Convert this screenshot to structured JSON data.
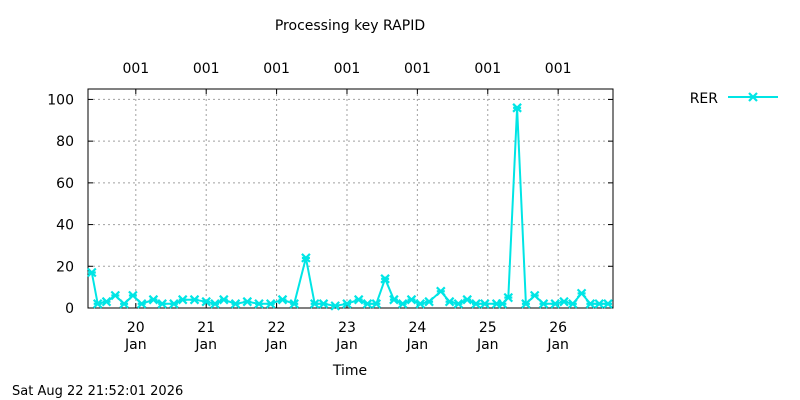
{
  "chart_data": {
    "type": "line",
    "title": "Processing key RAPID",
    "xlabel": "Time",
    "ylabel": "",
    "ylim": [
      0,
      105
    ],
    "xlim": [
      "2026-01-19 07:42",
      "2026-01-26 18:42"
    ],
    "y_ticks": [
      "0",
      "20",
      "40",
      "60",
      "80",
      "100"
    ],
    "x_ticks": [
      {
        "value": "2026-01-20",
        "day": "20",
        "month": "Jan"
      },
      {
        "value": "2026-01-21",
        "day": "21",
        "month": "Jan"
      },
      {
        "value": "2026-01-22",
        "day": "22",
        "month": "Jan"
      },
      {
        "value": "2026-01-23",
        "day": "23",
        "month": "Jan"
      },
      {
        "value": "2026-01-24",
        "day": "24",
        "month": "Jan"
      },
      {
        "value": "2026-01-25",
        "day": "25",
        "month": "Jan"
      },
      {
        "value": "2026-01-26",
        "day": "26",
        "month": "Jan"
      }
    ],
    "top_labels": [
      "001",
      "001",
      "001",
      "001",
      "001",
      "001",
      "001"
    ],
    "grid": true,
    "legend": "right",
    "series": [
      {
        "name": "RER",
        "color": "#00e5e5",
        "marker": "x-star",
        "x": [
          "2026-01-19 09:00",
          "2026-01-19 11:00",
          "2026-01-19 14:00",
          "2026-01-19 17:00",
          "2026-01-19 20:00",
          "2026-01-19 23:00",
          "2026-01-20 02:00",
          "2026-01-20 06:00",
          "2026-01-20 09:00",
          "2026-01-20 13:00",
          "2026-01-20 16:00",
          "2026-01-20 20:00",
          "2026-01-21 00:00",
          "2026-01-21 03:00",
          "2026-01-21 06:00",
          "2026-01-21 10:00",
          "2026-01-21 14:00",
          "2026-01-21 18:00",
          "2026-01-21 22:00",
          "2026-01-22 02:00",
          "2026-01-22 06:00",
          "2026-01-22 10:00",
          "2026-01-22 13:00",
          "2026-01-22 16:00",
          "2026-01-22 20:00",
          "2026-01-23 00:00",
          "2026-01-23 04:00",
          "2026-01-23 07:00",
          "2026-01-23 10:00",
          "2026-01-23 13:00",
          "2026-01-23 16:00",
          "2026-01-23 19:00",
          "2026-01-23 22:00",
          "2026-01-24 01:00",
          "2026-01-24 04:00",
          "2026-01-24 08:00",
          "2026-01-24 11:00",
          "2026-01-24 14:00",
          "2026-01-24 17:00",
          "2026-01-24 20:00",
          "2026-01-24 23:00",
          "2026-01-25 03:00",
          "2026-01-25 05:00",
          "2026-01-25 07:00",
          "2026-01-25 10:00",
          "2026-01-25 13:00",
          "2026-01-25 16:00",
          "2026-01-25 19:00",
          "2026-01-25 23:00",
          "2026-01-26 02:00",
          "2026-01-26 05:00",
          "2026-01-26 08:00",
          "2026-01-26 11:00",
          "2026-01-26 14:00",
          "2026-01-26 17:00"
        ],
        "values": [
          17,
          2,
          3,
          6,
          2,
          6,
          2,
          4,
          2,
          2,
          4,
          4,
          3,
          2,
          4,
          2,
          3,
          2,
          2,
          4,
          2,
          24,
          2,
          2,
          1,
          2,
          4,
          2,
          2,
          14,
          4,
          2,
          4,
          2,
          3,
          8,
          3,
          2,
          4,
          2,
          2,
          2,
          2,
          5,
          96,
          2,
          6,
          2,
          2,
          3,
          2,
          7,
          2,
          2,
          2
        ]
      }
    ]
  },
  "timestamp": "Sat Aug 22 21:52:01 2026"
}
